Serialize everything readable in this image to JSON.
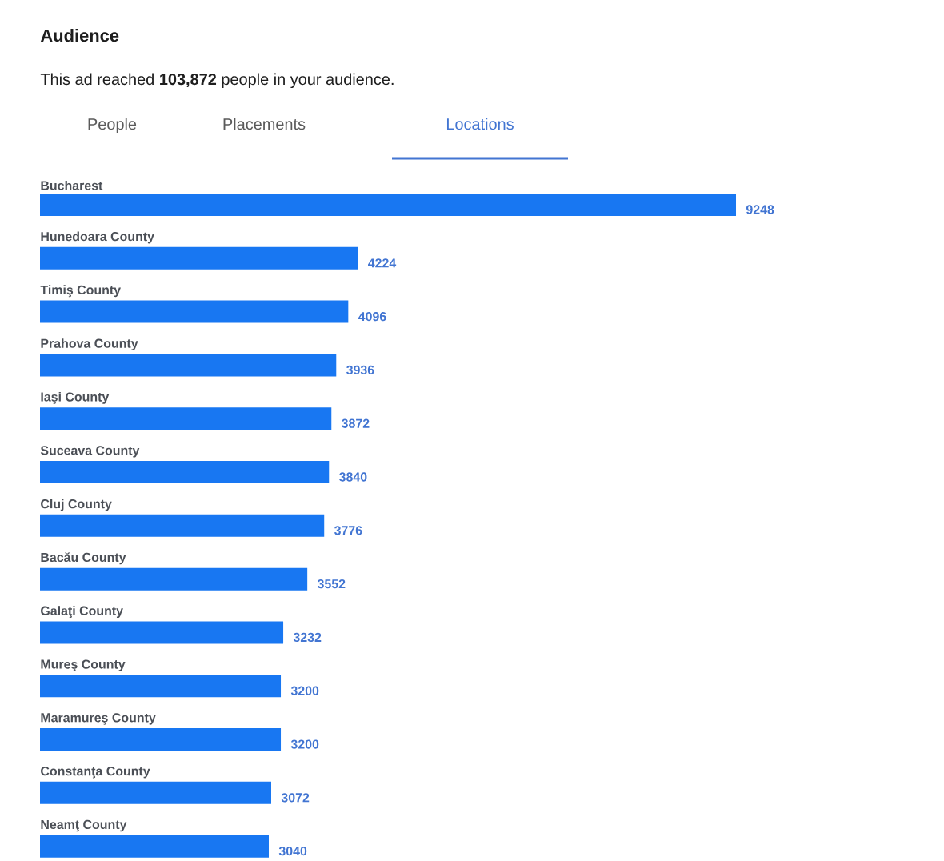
{
  "chart_data": {
    "type": "bar",
    "orientation": "horizontal",
    "title": "Audience",
    "subtitle": "This ad reached **103,872** people in your audience.",
    "annotations": [
      "People",
      "Placements",
      "Locations"
    ],
    "categories": [
      "Bucharest",
      "Hunedoara County",
      "Timiş County",
      "Prahova County",
      "Iaşi County",
      "Suceava County",
      "Cluj County",
      "Bacău County",
      "Galaţi County",
      "Mureş County",
      "Maramureş County",
      "Constanţa County",
      "Neamţ County"
    ],
    "values": [
      9248,
      4224,
      4096,
      3936,
      3872,
      3840,
      3776,
      3552,
      3232,
      3200,
      3200,
      3072,
      3040
    ],
    "color": "#1877f2",
    "data_labels": true
  }
}
